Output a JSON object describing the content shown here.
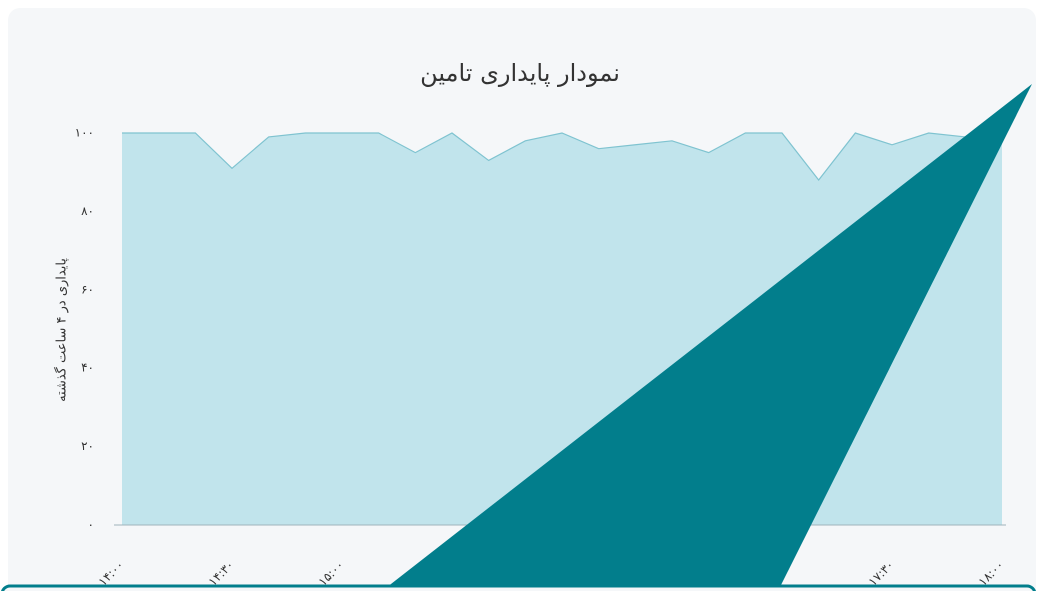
{
  "chart_data": {
    "type": "area",
    "title": "نمودار پایداری تامین",
    "y_label": "پایداری در ۴ ساعت گذشته",
    "categories": [
      "۱۴:۰۰",
      null,
      null,
      "۱۴:۳۰",
      null,
      null,
      "۱۵:۰۰",
      null,
      null,
      null,
      null,
      null,
      null,
      null,
      null,
      null,
      null,
      null,
      null,
      null,
      null,
      "۱۷:۳۰",
      null,
      null,
      "۱۸:۰۰"
    ],
    "values": [
      100,
      100,
      100,
      91,
      99,
      100,
      100,
      100,
      95,
      100,
      93,
      98,
      100,
      96,
      97,
      98,
      95,
      100,
      100,
      88,
      100,
      97,
      100,
      99,
      99
    ],
    "color": "#c1e4ec",
    "line_color": "#7fc3d0",
    "ylim": [
      0,
      100
    ],
    "yticks": [
      {
        "value": 0,
        "label": "۰"
      },
      {
        "value": 20,
        "label": "۲۰"
      },
      {
        "value": 40,
        "label": "۴۰"
      },
      {
        "value": 60,
        "label": "۶۰"
      },
      {
        "value": 80,
        "label": "۸۰"
      },
      {
        "value": 100,
        "label": "۱۰۰"
      }
    ]
  }
}
